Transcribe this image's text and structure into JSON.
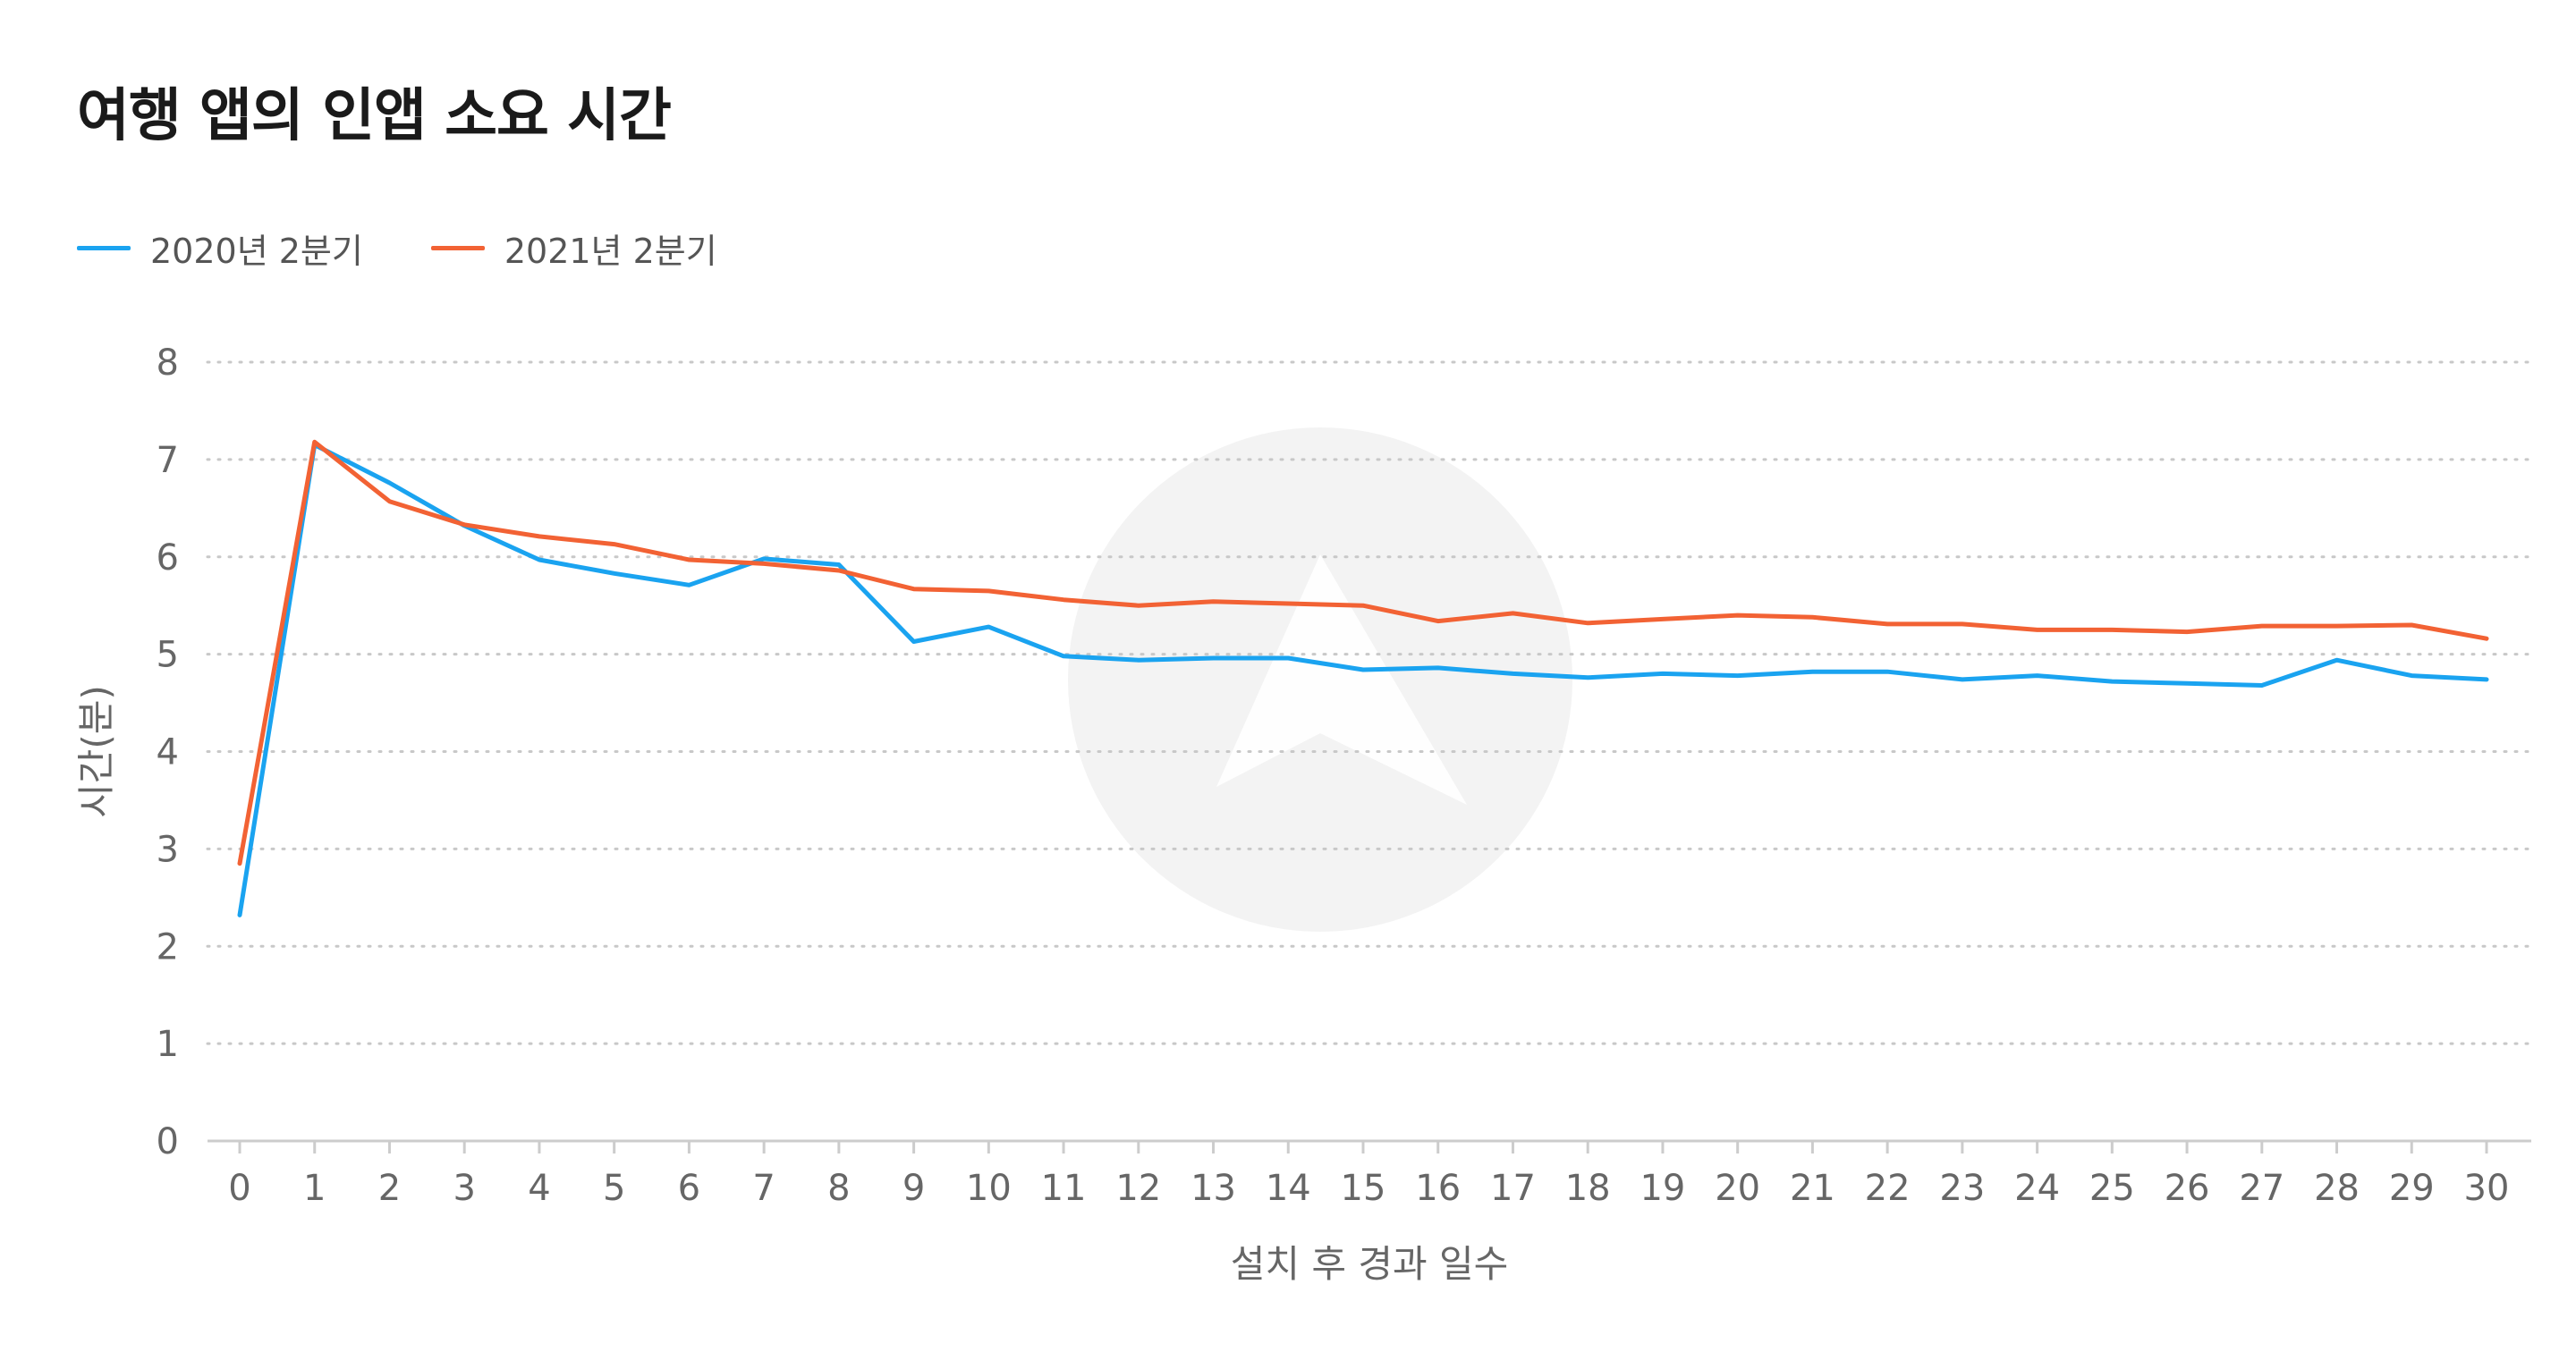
{
  "title": "여행 앱의 인앱 소요 시간",
  "legend": [
    {
      "label": "2020년 2분기",
      "color": "#1aa3f0"
    },
    {
      "label": "2021년 2분기",
      "color": "#f26234"
    }
  ],
  "chart_data": {
    "type": "line",
    "title": "여행 앱의 인앱 소요 시간",
    "xlabel": "설치 후 경과 일수",
    "ylabel": "시간(분)",
    "x": [
      0,
      1,
      2,
      3,
      4,
      5,
      6,
      7,
      8,
      9,
      10,
      11,
      12,
      13,
      14,
      15,
      16,
      17,
      18,
      19,
      20,
      21,
      22,
      23,
      24,
      25,
      26,
      27,
      28,
      29,
      30
    ],
    "ylim": [
      0,
      8
    ],
    "yticks": [
      0,
      1,
      2,
      3,
      4,
      5,
      6,
      7,
      8
    ],
    "grid": true,
    "legend_position": "top-left",
    "series": [
      {
        "name": "2020년 2분기",
        "color": "#1aa3f0",
        "values": [
          2.32,
          7.15,
          6.76,
          6.32,
          5.97,
          5.83,
          5.71,
          5.98,
          5.92,
          5.13,
          5.28,
          4.98,
          4.94,
          4.96,
          4.96,
          4.84,
          4.86,
          4.8,
          4.76,
          4.8,
          4.78,
          4.82,
          4.82,
          4.74,
          4.78,
          4.72,
          4.7,
          4.68,
          4.94,
          4.78,
          4.74
        ]
      },
      {
        "name": "2021년 2분기",
        "color": "#f26234",
        "values": [
          2.85,
          7.18,
          6.57,
          6.33,
          6.21,
          6.13,
          5.97,
          5.93,
          5.86,
          5.67,
          5.65,
          5.56,
          5.5,
          5.54,
          5.52,
          5.5,
          5.34,
          5.42,
          5.32,
          5.36,
          5.4,
          5.38,
          5.31,
          5.31,
          5.25,
          5.25,
          5.23,
          5.29,
          5.29,
          5.3,
          5.16
        ]
      }
    ]
  }
}
